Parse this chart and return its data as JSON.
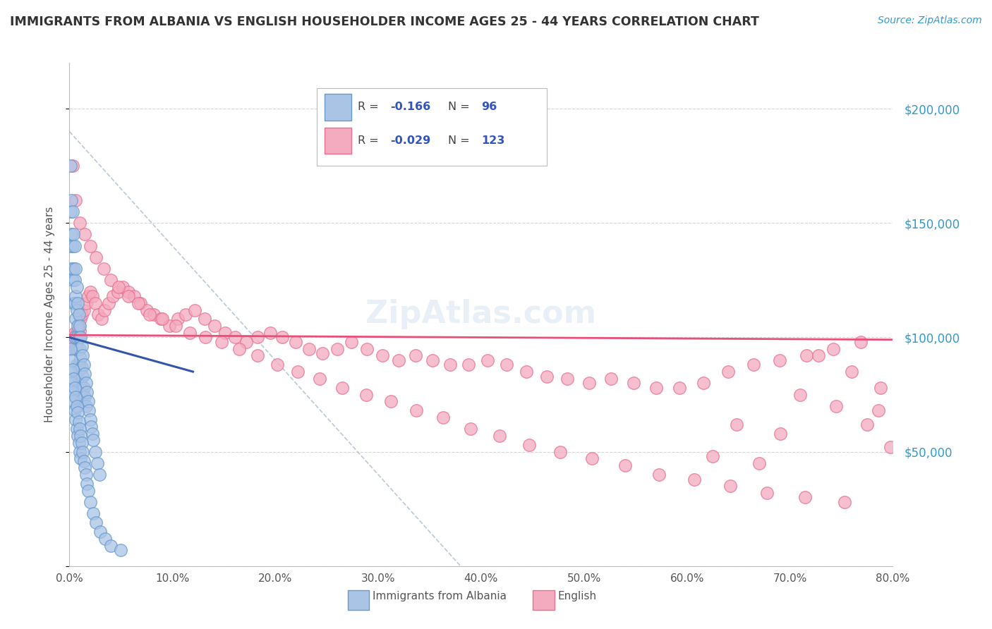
{
  "title": "IMMIGRANTS FROM ALBANIA VS ENGLISH HOUSEHOLDER INCOME AGES 25 - 44 YEARS CORRELATION CHART",
  "source": "Source: ZipAtlas.com",
  "ylabel": "Householder Income Ages 25 - 44 years",
  "xlim": [
    0.0,
    0.8
  ],
  "ylim": [
    0,
    220000
  ],
  "albania_color": "#6699cc",
  "albania_fill": "#aac4e6",
  "english_color": "#e87090",
  "english_fill": "#f4aabf",
  "trend_albania_color": "#3355aa",
  "trend_english_color": "#e8507a",
  "background_color": "#ffffff",
  "grid_color": "#cccccc",
  "title_color": "#333333",
  "source_color": "#3399cc",
  "axis_label_color": "#555555",
  "albania_R": "-0.166",
  "albania_N": "96",
  "english_R": "-0.029",
  "english_N": "123",
  "albania_x": [
    0.001,
    0.001,
    0.001,
    0.002,
    0.002,
    0.002,
    0.003,
    0.003,
    0.003,
    0.004,
    0.004,
    0.004,
    0.005,
    0.005,
    0.005,
    0.005,
    0.006,
    0.006,
    0.006,
    0.006,
    0.007,
    0.007,
    0.007,
    0.007,
    0.008,
    0.008,
    0.008,
    0.008,
    0.009,
    0.009,
    0.009,
    0.01,
    0.01,
    0.01,
    0.01,
    0.011,
    0.011,
    0.011,
    0.012,
    0.012,
    0.012,
    0.013,
    0.013,
    0.013,
    0.014,
    0.014,
    0.015,
    0.015,
    0.016,
    0.016,
    0.017,
    0.018,
    0.019,
    0.02,
    0.021,
    0.022,
    0.023,
    0.025,
    0.027,
    0.029,
    0.001,
    0.001,
    0.002,
    0.002,
    0.003,
    0.003,
    0.004,
    0.004,
    0.005,
    0.005,
    0.006,
    0.006,
    0.007,
    0.007,
    0.008,
    0.008,
    0.009,
    0.009,
    0.01,
    0.01,
    0.011,
    0.011,
    0.012,
    0.013,
    0.014,
    0.015,
    0.016,
    0.017,
    0.018,
    0.02,
    0.023,
    0.026,
    0.03,
    0.035,
    0.04,
    0.05
  ],
  "albania_y": [
    175000,
    155000,
    140000,
    160000,
    145000,
    130000,
    155000,
    140000,
    125000,
    145000,
    130000,
    115000,
    140000,
    125000,
    115000,
    100000,
    130000,
    118000,
    108000,
    95000,
    122000,
    112000,
    100000,
    88000,
    115000,
    105000,
    95000,
    83000,
    110000,
    100000,
    88000,
    105000,
    95000,
    86000,
    75000,
    100000,
    91000,
    80000,
    96000,
    87000,
    77000,
    92000,
    83000,
    73000,
    88000,
    78000,
    84000,
    74000,
    80000,
    70000,
    76000,
    72000,
    68000,
    64000,
    61000,
    58000,
    55000,
    50000,
    45000,
    40000,
    95000,
    85000,
    90000,
    80000,
    86000,
    76000,
    82000,
    72000,
    78000,
    68000,
    74000,
    64000,
    70000,
    60000,
    67000,
    57000,
    63000,
    54000,
    60000,
    50000,
    57000,
    47000,
    54000,
    50000,
    46000,
    43000,
    40000,
    36000,
    33000,
    28000,
    23000,
    19000,
    15000,
    12000,
    9000,
    7000
  ],
  "english_x": [
    0.001,
    0.002,
    0.003,
    0.004,
    0.005,
    0.006,
    0.007,
    0.008,
    0.009,
    0.01,
    0.011,
    0.012,
    0.014,
    0.016,
    0.018,
    0.02,
    0.022,
    0.025,
    0.028,
    0.031,
    0.034,
    0.038,
    0.042,
    0.047,
    0.052,
    0.057,
    0.063,
    0.069,
    0.075,
    0.082,
    0.089,
    0.097,
    0.105,
    0.113,
    0.122,
    0.131,
    0.141,
    0.151,
    0.161,
    0.172,
    0.183,
    0.195,
    0.207,
    0.22,
    0.233,
    0.246,
    0.26,
    0.274,
    0.289,
    0.304,
    0.32,
    0.336,
    0.353,
    0.37,
    0.388,
    0.406,
    0.425,
    0.444,
    0.464,
    0.484,
    0.505,
    0.526,
    0.548,
    0.57,
    0.593,
    0.616,
    0.64,
    0.665,
    0.69,
    0.716,
    0.742,
    0.769,
    0.003,
    0.006,
    0.01,
    0.015,
    0.02,
    0.026,
    0.033,
    0.04,
    0.048,
    0.057,
    0.067,
    0.078,
    0.09,
    0.103,
    0.117,
    0.132,
    0.148,
    0.165,
    0.183,
    0.202,
    0.222,
    0.243,
    0.265,
    0.288,
    0.312,
    0.337,
    0.363,
    0.39,
    0.418,
    0.447,
    0.477,
    0.508,
    0.54,
    0.573,
    0.607,
    0.642,
    0.678,
    0.715,
    0.753,
    0.786,
    0.798,
    0.788,
    0.775,
    0.76,
    0.745,
    0.728,
    0.71,
    0.691,
    0.67,
    0.648,
    0.625
  ],
  "english_y": [
    95000,
    97000,
    100000,
    98000,
    102000,
    100000,
    98000,
    103000,
    105000,
    103000,
    108000,
    110000,
    112000,
    115000,
    118000,
    120000,
    118000,
    115000,
    110000,
    108000,
    112000,
    115000,
    118000,
    120000,
    122000,
    120000,
    118000,
    115000,
    112000,
    110000,
    108000,
    105000,
    108000,
    110000,
    112000,
    108000,
    105000,
    102000,
    100000,
    98000,
    100000,
    102000,
    100000,
    98000,
    95000,
    93000,
    95000,
    98000,
    95000,
    92000,
    90000,
    92000,
    90000,
    88000,
    88000,
    90000,
    88000,
    85000,
    83000,
    82000,
    80000,
    82000,
    80000,
    78000,
    78000,
    80000,
    85000,
    88000,
    90000,
    92000,
    95000,
    98000,
    175000,
    160000,
    150000,
    145000,
    140000,
    135000,
    130000,
    125000,
    122000,
    118000,
    115000,
    110000,
    108000,
    105000,
    102000,
    100000,
    98000,
    95000,
    92000,
    88000,
    85000,
    82000,
    78000,
    75000,
    72000,
    68000,
    65000,
    60000,
    57000,
    53000,
    50000,
    47000,
    44000,
    40000,
    38000,
    35000,
    32000,
    30000,
    28000,
    68000,
    52000,
    78000,
    62000,
    85000,
    70000,
    92000,
    75000,
    58000,
    45000,
    62000,
    48000
  ]
}
